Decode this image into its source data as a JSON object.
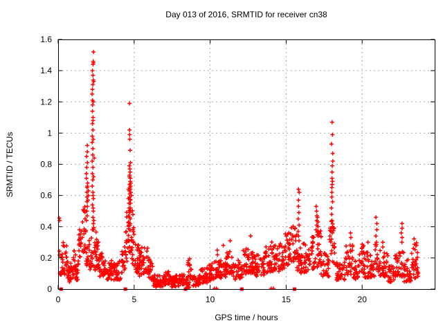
{
  "chart_data": {
    "type": "scatter",
    "title": "Day 013 of 2016, SRMTID for receiver cn38",
    "xlabel": "GPS time / hours",
    "ylabel": "SRMTID / TECUs",
    "xlim": [
      0,
      24.77
    ],
    "ylim": [
      0,
      1.6
    ],
    "xticks": [
      0,
      5,
      10,
      15,
      20
    ],
    "xtick_labels": [
      "0",
      "5",
      "10",
      "15",
      "20"
    ],
    "yticks": [
      0,
      0.2,
      0.4,
      0.6,
      0.8,
      1.0,
      1.2,
      1.4,
      1.6
    ],
    "ytick_labels": [
      "0",
      "0.2",
      "0.4",
      "0.6",
      "0.8",
      "1",
      "1.2",
      "1.4",
      "1.6"
    ],
    "grid": "dashed",
    "grid_color": "#a8a8a8",
    "marker": "plus",
    "color": "#ff0000",
    "series": {
      "name": "SRMTID",
      "bands_key": [
        "x0",
        "x1",
        "n",
        "ylo_at_x0",
        "yhi_at_x0",
        "ylo_at_x1",
        "yhi_at_x1"
      ],
      "bands": [
        [
          0.05,
          0.3,
          14,
          0.1,
          0.26,
          0.08,
          0.22
        ],
        [
          0.3,
          0.6,
          20,
          0.08,
          0.3,
          0.1,
          0.33
        ],
        [
          0.6,
          0.95,
          26,
          0.05,
          0.22,
          0.04,
          0.14
        ],
        [
          0.95,
          1.3,
          24,
          0.05,
          0.15,
          0.06,
          0.16
        ],
        [
          1.0,
          1.15,
          6,
          0.18,
          0.33,
          0.18,
          0.3
        ],
        [
          1.3,
          1.55,
          18,
          0.12,
          0.35,
          0.2,
          0.44
        ],
        [
          1.55,
          1.8,
          18,
          0.22,
          0.5,
          0.25,
          0.55
        ],
        [
          1.8,
          2.0,
          14,
          0.15,
          0.45,
          0.12,
          0.35
        ],
        [
          2.0,
          2.2,
          14,
          0.1,
          0.3,
          0.15,
          0.4
        ],
        [
          2.2,
          2.42,
          12,
          0.12,
          0.42,
          0.12,
          0.38
        ],
        [
          2.42,
          2.7,
          26,
          0.12,
          0.4,
          0.1,
          0.28
        ],
        [
          2.7,
          3.15,
          34,
          0.08,
          0.25,
          0.08,
          0.2
        ],
        [
          3.15,
          3.55,
          26,
          0.06,
          0.18,
          0.06,
          0.2
        ],
        [
          3.55,
          4.1,
          34,
          0.05,
          0.18,
          0.06,
          0.18
        ],
        [
          4.1,
          4.4,
          18,
          0.08,
          0.25,
          0.12,
          0.32
        ],
        [
          4.4,
          4.65,
          20,
          0.15,
          0.45,
          0.2,
          0.6
        ],
        [
          4.65,
          4.95,
          26,
          0.2,
          0.65,
          0.15,
          0.5
        ],
        [
          4.95,
          5.3,
          24,
          0.12,
          0.4,
          0.1,
          0.28
        ],
        [
          5.3,
          5.9,
          40,
          0.08,
          0.26,
          0.1,
          0.28
        ],
        [
          5.9,
          6.25,
          24,
          0.08,
          0.22,
          0.05,
          0.15
        ],
        [
          6.25,
          7.0,
          52,
          0.01,
          0.09,
          0.02,
          0.1
        ],
        [
          7.0,
          7.35,
          24,
          0.03,
          0.13,
          0.03,
          0.11
        ],
        [
          7.35,
          7.95,
          40,
          0.01,
          0.08,
          0.02,
          0.09
        ],
        [
          7.95,
          8.3,
          22,
          0.03,
          0.11,
          0.03,
          0.1
        ],
        [
          8.38,
          8.65,
          18,
          0.005,
          0.06,
          0.01,
          0.08
        ],
        [
          8.45,
          8.85,
          18,
          0.07,
          0.22,
          0.06,
          0.18
        ],
        [
          8.85,
          9.35,
          30,
          0.02,
          0.1,
          0.02,
          0.1
        ],
        [
          9.35,
          9.8,
          28,
          0.03,
          0.13,
          0.04,
          0.14
        ],
        [
          9.8,
          10.25,
          28,
          0.05,
          0.18,
          0.06,
          0.17
        ],
        [
          10.25,
          10.7,
          28,
          0.07,
          0.2,
          0.07,
          0.18
        ],
        [
          10.7,
          11.1,
          26,
          0.07,
          0.19,
          0.08,
          0.2
        ],
        [
          11.1,
          11.5,
          26,
          0.1,
          0.28,
          0.1,
          0.25
        ],
        [
          11.5,
          12.1,
          36,
          0.06,
          0.2,
          0.07,
          0.18
        ],
        [
          12.15,
          12.55,
          26,
          0.08,
          0.25,
          0.1,
          0.28
        ],
        [
          12.55,
          12.95,
          26,
          0.1,
          0.3,
          0.1,
          0.26
        ],
        [
          12.95,
          13.6,
          38,
          0.08,
          0.22,
          0.09,
          0.22
        ],
        [
          13.6,
          14.25,
          38,
          0.1,
          0.28,
          0.12,
          0.32
        ],
        [
          14.25,
          14.8,
          32,
          0.1,
          0.28,
          0.13,
          0.3
        ],
        [
          14.8,
          15.3,
          30,
          0.13,
          0.35,
          0.15,
          0.38
        ],
        [
          15.3,
          15.7,
          26,
          0.15,
          0.4,
          0.18,
          0.42
        ],
        [
          15.7,
          15.95,
          14,
          0.12,
          0.32,
          0.12,
          0.3
        ],
        [
          15.95,
          16.6,
          38,
          0.1,
          0.3,
          0.12,
          0.28
        ],
        [
          16.6,
          17.3,
          40,
          0.12,
          0.35,
          0.15,
          0.38
        ],
        [
          17.3,
          17.85,
          30,
          0.08,
          0.25,
          0.08,
          0.22
        ],
        [
          17.85,
          18.3,
          22,
          0.15,
          0.45,
          0.15,
          0.4
        ],
        [
          18.3,
          18.85,
          32,
          0.05,
          0.18,
          0.06,
          0.18
        ],
        [
          18.85,
          19.4,
          30,
          0.08,
          0.28,
          0.1,
          0.3
        ],
        [
          19.4,
          19.8,
          24,
          0.06,
          0.18,
          0.07,
          0.18
        ],
        [
          19.8,
          20.15,
          22,
          0.1,
          0.3,
          0.1,
          0.28
        ],
        [
          20.15,
          20.85,
          40,
          0.07,
          0.24,
          0.08,
          0.24
        ],
        [
          20.85,
          21.1,
          14,
          0.1,
          0.3,
          0.1,
          0.28
        ],
        [
          21.1,
          21.7,
          34,
          0.08,
          0.25,
          0.08,
          0.24
        ],
        [
          21.7,
          22.1,
          24,
          0.04,
          0.16,
          0.05,
          0.16
        ],
        [
          22.1,
          22.75,
          36,
          0.08,
          0.28,
          0.08,
          0.26
        ],
        [
          22.75,
          23.25,
          28,
          0.04,
          0.18,
          0.05,
          0.2
        ],
        [
          23.25,
          23.7,
          28,
          0.06,
          0.28,
          0.08,
          0.3
        ],
        [
          23.4,
          23.6,
          6,
          0.28,
          0.36,
          0.28,
          0.34
        ]
      ],
      "columns": [
        {
          "x": 1.9,
          "ys": [
            0.92,
            0.88,
            0.85,
            0.81,
            0.78,
            0.74,
            0.71,
            0.68,
            0.65,
            0.62,
            0.59,
            0.56,
            0.53,
            0.5,
            0.47,
            0.44
          ]
        },
        {
          "x": 1.95,
          "ys": [
            0.66,
            0.63,
            0.6,
            0.57
          ]
        },
        {
          "x": 2.28,
          "ys": [
            1.52,
            1.46,
            1.44,
            1.4,
            1.37,
            1.34,
            1.31,
            1.28,
            1.25,
            1.21,
            1.18,
            1.14,
            1.1,
            1.06,
            1.02,
            0.98,
            0.94,
            0.9,
            0.86,
            0.82,
            0.78,
            0.74,
            0.7,
            0.66,
            0.62,
            0.58,
            0.54,
            0.5,
            0.46,
            0.42
          ]
        },
        {
          "x": 2.33,
          "ys": [
            1.45,
            1.33,
            1.2,
            1.08,
            0.96,
            0.84,
            0.72,
            0.6,
            0.52,
            0.44,
            0.38
          ]
        },
        {
          "x": 4.72,
          "ys": [
            1.19,
            1.02,
            0.99,
            0.96,
            0.89,
            0.81,
            0.79,
            0.77,
            0.75,
            0.73,
            0.71,
            0.69,
            0.67,
            0.65,
            0.63,
            0.61,
            0.59,
            0.57,
            0.55,
            0.52,
            0.49,
            0.46
          ]
        },
        {
          "x": 4.78,
          "ys": [
            0.68,
            0.66,
            0.64,
            0.62,
            0.6,
            0.55,
            0.5,
            0.45,
            0.42
          ]
        },
        {
          "x": 4.66,
          "ys": [
            0.72,
            0.64,
            0.58,
            0.52,
            0.47,
            0.43
          ]
        },
        {
          "x": 10.45,
          "ys": [
            0.25,
            0.22
          ]
        },
        {
          "x": 10.85,
          "ys": [
            0.28
          ]
        },
        {
          "x": 11.3,
          "ys": [
            0.31
          ]
        },
        {
          "x": 12.7,
          "ys": [
            0.34
          ]
        },
        {
          "x": 15.82,
          "ys": [
            0.64,
            0.62,
            0.57,
            0.53,
            0.49,
            0.45,
            0.41,
            0.37,
            0.34,
            0.31
          ]
        },
        {
          "x": 17.0,
          "ys": [
            0.53,
            0.5,
            0.47,
            0.44,
            0.41,
            0.38
          ]
        },
        {
          "x": 17.08,
          "ys": [
            0.46,
            0.43,
            0.4,
            0.37
          ]
        },
        {
          "x": 18.02,
          "ys": [
            1.07,
            0.99,
            0.93,
            0.87,
            0.82,
            0.79,
            0.75,
            0.71,
            0.69,
            0.67,
            0.65,
            0.62,
            0.59,
            0.56,
            0.52,
            0.48,
            0.44,
            0.4,
            0.36,
            0.32,
            0.28
          ]
        },
        {
          "x": 19.25,
          "ys": [
            0.36,
            0.33
          ]
        },
        {
          "x": 20.35,
          "ys": [
            0.3
          ]
        },
        {
          "x": 20.93,
          "ys": [
            0.46,
            0.42,
            0.38,
            0.34,
            0.3
          ]
        },
        {
          "x": 21.4,
          "ys": [
            0.3,
            0.27
          ]
        },
        {
          "x": 22.6,
          "ys": [
            0.42,
            0.39,
            0.36,
            0.33,
            0.3
          ]
        }
      ],
      "points": [
        [
          0.07,
          0.455
        ],
        [
          0.1,
          0.44
        ]
      ]
    },
    "zero_square_series": {
      "name": "zero-line square markers",
      "marker": "square",
      "y": 0,
      "x": [
        0.2,
        4.42,
        8.38,
        12.08,
        15.55
      ]
    },
    "zero_tick_series": {
      "name": "zero-line small plus markers",
      "marker": "plus",
      "y": 0.004,
      "x": [
        10.28,
        10.42,
        14.02,
        14.16
      ]
    }
  }
}
